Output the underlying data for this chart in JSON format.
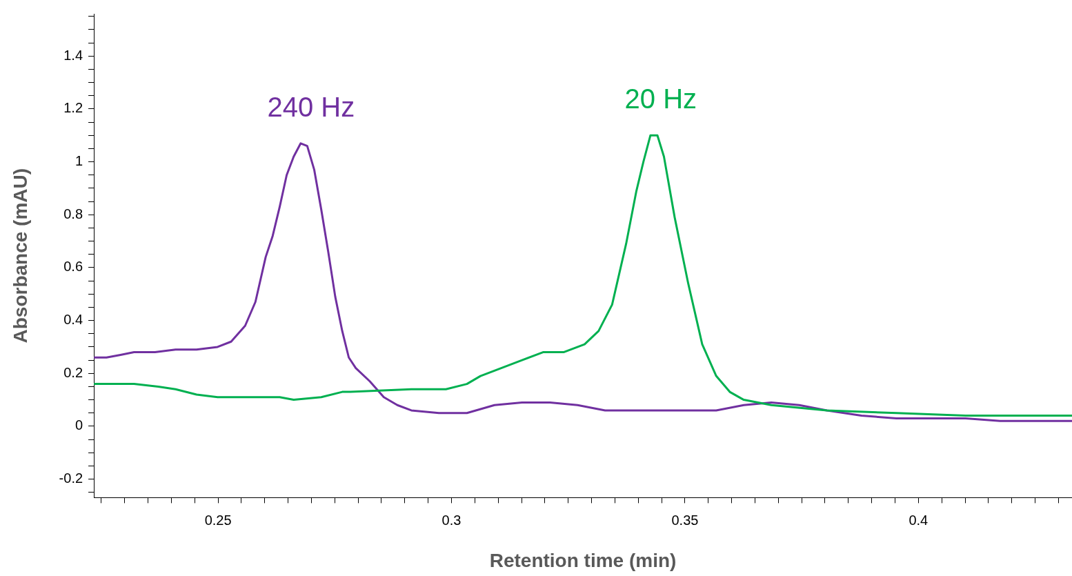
{
  "chart_data": {
    "type": "line",
    "xlabel": "Retention time (min)",
    "ylabel": "Absorbance (mAU)",
    "xlim": [
      0.2234,
      0.4329
    ],
    "ylim": [
      -0.27,
      1.56
    ],
    "xticks": [
      {
        "value": 0.225,
        "label": null
      },
      {
        "value": 0.23,
        "label": null
      },
      {
        "value": 0.235,
        "label": null
      },
      {
        "value": 0.24,
        "label": null
      },
      {
        "value": 0.245,
        "label": null
      },
      0.25,
      {
        "value": 0.255,
        "label": null
      },
      {
        "value": 0.26,
        "label": null
      },
      {
        "value": 0.265,
        "label": null
      },
      {
        "value": 0.27,
        "label": null
      },
      {
        "value": 0.275,
        "label": null
      },
      {
        "value": 0.28,
        "label": null
      },
      {
        "value": 0.285,
        "label": null
      },
      {
        "value": 0.29,
        "label": null
      },
      {
        "value": 0.295,
        "label": null
      },
      0.3,
      {
        "value": 0.305,
        "label": null
      },
      {
        "value": 0.31,
        "label": null
      },
      {
        "value": 0.315,
        "label": null
      },
      {
        "value": 0.32,
        "label": null
      },
      {
        "value": 0.325,
        "label": null
      },
      {
        "value": 0.33,
        "label": null
      },
      {
        "value": 0.335,
        "label": null
      },
      {
        "value": 0.34,
        "label": null
      },
      {
        "value": 0.345,
        "label": null
      },
      0.35,
      {
        "value": 0.355,
        "label": null
      },
      {
        "value": 0.36,
        "label": null
      },
      {
        "value": 0.365,
        "label": null
      },
      {
        "value": 0.37,
        "label": null
      },
      {
        "value": 0.375,
        "label": null
      },
      {
        "value": 0.38,
        "label": null
      },
      {
        "value": 0.385,
        "label": null
      },
      {
        "value": 0.39,
        "label": null
      },
      {
        "value": 0.395,
        "label": null
      },
      0.4,
      {
        "value": 0.405,
        "label": null
      },
      {
        "value": 0.41,
        "label": null
      },
      {
        "value": 0.415,
        "label": null
      },
      {
        "value": 0.42,
        "label": null
      },
      {
        "value": 0.425,
        "label": null
      },
      {
        "value": 0.43,
        "label": null
      }
    ],
    "yticks": [
      {
        "value": -0.25,
        "label": null
      },
      -0.2,
      {
        "value": -0.15,
        "label": null
      },
      {
        "value": -0.1,
        "label": null
      },
      {
        "value": -0.05,
        "label": null
      },
      0,
      {
        "value": 0.05,
        "label": null
      },
      {
        "value": 0.1,
        "label": null
      },
      {
        "value": 0.15,
        "label": null
      },
      0.2,
      {
        "value": 0.25,
        "label": null
      },
      {
        "value": 0.3,
        "label": null
      },
      {
        "value": 0.35,
        "label": null
      },
      0.4,
      {
        "value": 0.45,
        "label": null
      },
      {
        "value": 0.5,
        "label": null
      },
      {
        "value": 0.55,
        "label": null
      },
      0.6,
      {
        "value": 0.65,
        "label": null
      },
      {
        "value": 0.7,
        "label": null
      },
      {
        "value": 0.75,
        "label": null
      },
      0.8,
      {
        "value": 0.85,
        "label": null
      },
      {
        "value": 0.9,
        "label": null
      },
      {
        "value": 0.95,
        "label": null
      },
      1,
      {
        "value": 1.05,
        "label": null
      },
      {
        "value": 1.1,
        "label": null
      },
      {
        "value": 1.15,
        "label": null
      },
      1.2,
      {
        "value": 1.25,
        "label": null
      },
      {
        "value": 1.3,
        "label": null
      },
      {
        "value": 1.35,
        "label": null
      },
      1.4,
      {
        "value": 1.45,
        "label": null
      },
      {
        "value": 1.5,
        "label": null
      },
      {
        "value": 1.55,
        "label": null
      }
    ],
    "grid": false,
    "legend": false,
    "marker": "none",
    "line_style": "solid",
    "series": [
      {
        "name": "20 Hz",
        "color": "#00b050",
        "x": [
          0.2234,
          0.2276,
          0.232,
          0.2372,
          0.2409,
          0.2454,
          0.2499,
          0.2573,
          0.2632,
          0.2662,
          0.2721,
          0.2766,
          0.278,
          0.2914,
          0.2988,
          0.3033,
          0.3062,
          0.3092,
          0.3151,
          0.3196,
          0.324,
          0.3285,
          0.3315,
          0.3344,
          0.3374,
          0.3396,
          0.3411,
          0.3426,
          0.3441,
          0.3455,
          0.3478,
          0.3507,
          0.3537,
          0.3567,
          0.3596,
          0.3626,
          0.3685,
          0.3804,
          0.3953,
          0.4101,
          0.4329
        ],
        "values": [
          0.16,
          0.16,
          0.16,
          0.15,
          0.14,
          0.12,
          0.11,
          0.11,
          0.11,
          0.1,
          0.11,
          0.13,
          0.13,
          0.14,
          0.14,
          0.16,
          0.19,
          0.21,
          0.25,
          0.28,
          0.28,
          0.31,
          0.36,
          0.46,
          0.69,
          0.89,
          1.0,
          1.1,
          1.1,
          1.02,
          0.79,
          0.54,
          0.31,
          0.19,
          0.13,
          0.1,
          0.08,
          0.06,
          0.05,
          0.04,
          0.04
        ]
      },
      {
        "name": "240 Hz",
        "color": "#7030a0",
        "x": [
          0.2234,
          0.2261,
          0.2291,
          0.232,
          0.2365,
          0.2409,
          0.2454,
          0.2499,
          0.2528,
          0.2558,
          0.258,
          0.2602,
          0.2617,
          0.2632,
          0.2647,
          0.2662,
          0.2677,
          0.2691,
          0.2706,
          0.2721,
          0.2736,
          0.2751,
          0.2766,
          0.278,
          0.2795,
          0.2825,
          0.2855,
          0.2884,
          0.2914,
          0.2973,
          0.3033,
          0.3092,
          0.3151,
          0.3211,
          0.327,
          0.3329,
          0.3389,
          0.3448,
          0.3507,
          0.3567,
          0.3626,
          0.3685,
          0.3745,
          0.3804,
          0.3878,
          0.3953,
          0.4027,
          0.4101,
          0.4175,
          0.4249,
          0.4329
        ],
        "values": [
          0.26,
          0.26,
          0.27,
          0.28,
          0.28,
          0.29,
          0.29,
          0.3,
          0.32,
          0.38,
          0.47,
          0.64,
          0.72,
          0.83,
          0.95,
          1.02,
          1.07,
          1.06,
          0.97,
          0.82,
          0.66,
          0.49,
          0.36,
          0.26,
          0.22,
          0.17,
          0.11,
          0.08,
          0.06,
          0.05,
          0.05,
          0.08,
          0.09,
          0.09,
          0.08,
          0.06,
          0.06,
          0.06,
          0.06,
          0.06,
          0.08,
          0.09,
          0.08,
          0.06,
          0.04,
          0.03,
          0.03,
          0.03,
          0.02,
          0.02,
          0.02
        ]
      }
    ]
  }
}
